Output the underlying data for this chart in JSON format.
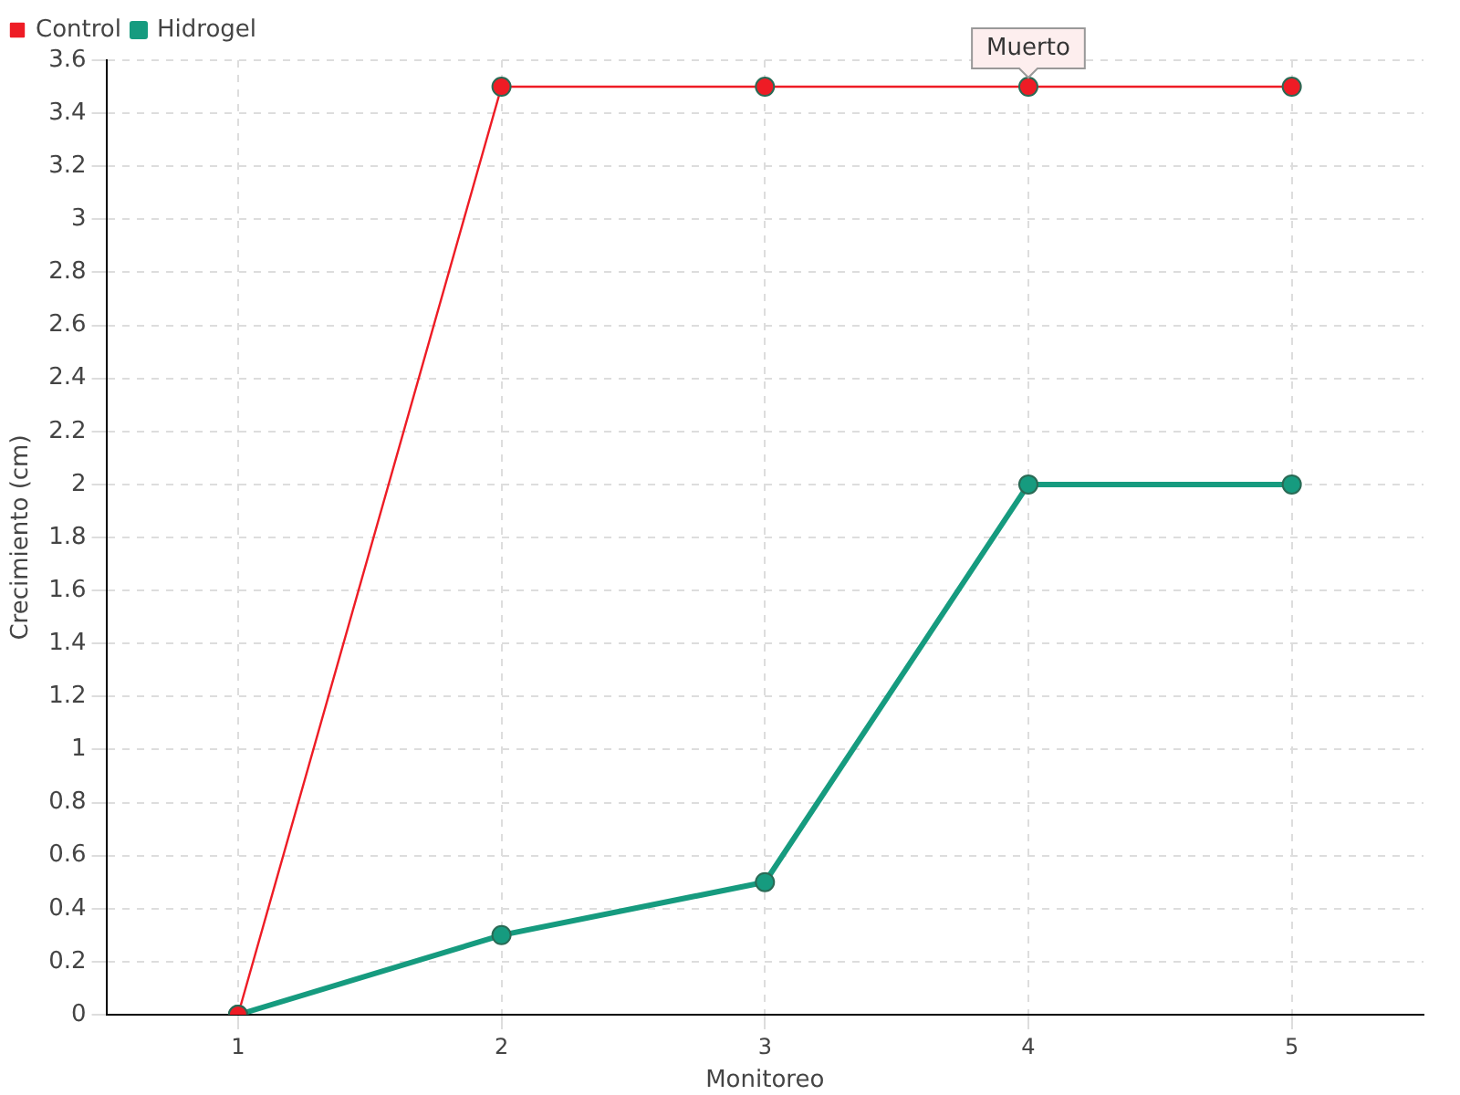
{
  "chart_data": {
    "type": "line",
    "xlabel": "Monitoreo",
    "ylabel": "Crecimiento (cm)",
    "categories": [
      "1",
      "2",
      "3",
      "4",
      "5"
    ],
    "series": [
      {
        "name": "Hidrogel",
        "color": "#169b7f",
        "values": [
          0,
          0.3,
          0.5,
          2,
          2
        ]
      },
      {
        "name": "Control",
        "color": "#ee1c25",
        "values": [
          0,
          3.5,
          3.5,
          3.5,
          3.5
        ]
      }
    ],
    "ylim": [
      0,
      3.6
    ],
    "yticks": [
      0,
      0.2,
      0.4,
      0.6,
      0.8,
      1,
      1.2,
      1.4,
      1.6,
      1.8,
      2,
      2.2,
      2.4,
      2.6,
      2.8,
      3,
      3.2,
      3.4,
      3.6
    ],
    "annotations": [
      {
        "text": "Muerto",
        "x": "4",
        "y": 3.5
      }
    ],
    "grid": true,
    "legend": "top left",
    "marker": "circle",
    "line_style": "solid"
  }
}
